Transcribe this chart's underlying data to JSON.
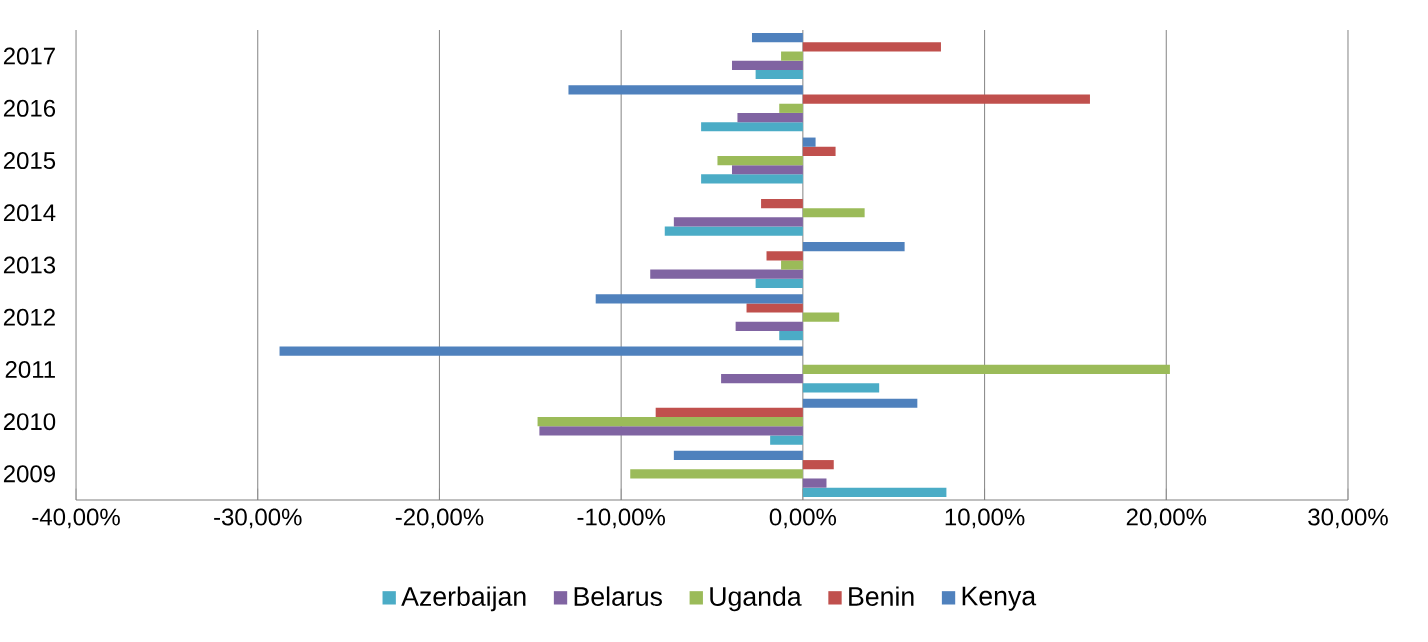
{
  "chart_data": {
    "type": "bar",
    "orientation": "horizontal",
    "categories": [
      "2017",
      "2016",
      "2015",
      "2014",
      "2013",
      "2012",
      "2011",
      "2010",
      "2009"
    ],
    "series": [
      {
        "name": "Azerbaijan",
        "color": "#4bacc6",
        "values": [
          -2.6,
          -5.6,
          -5.6,
          -7.6,
          -2.6,
          -1.3,
          4.2,
          -1.8,
          7.9
        ]
      },
      {
        "name": "Belarus",
        "color": "#8064a2",
        "values": [
          -3.9,
          -3.6,
          -3.9,
          -7.1,
          -8.4,
          -3.7,
          -4.5,
          -14.5,
          1.3
        ]
      },
      {
        "name": "Uganda",
        "color": "#9bbb59",
        "values": [
          -1.2,
          -1.3,
          -4.7,
          3.4,
          -1.2,
          2.0,
          20.2,
          -14.6,
          -9.5
        ]
      },
      {
        "name": "Benin",
        "color": "#c0504d",
        "values": [
          7.6,
          15.8,
          1.8,
          -2.3,
          -2.0,
          -3.1,
          0,
          -8.1,
          1.7
        ]
      },
      {
        "name": "Kenya",
        "color": "#4f81bd",
        "values": [
          -2.8,
          -12.9,
          0.7,
          0,
          5.6,
          -11.4,
          -28.8,
          6.3,
          -7.1
        ]
      }
    ],
    "xlim": [
      -40,
      30
    ],
    "xticks": [
      {
        "value": -40,
        "label": "-40,00%"
      },
      {
        "value": -30,
        "label": "-30,00%"
      },
      {
        "value": -20,
        "label": "-20,00%"
      },
      {
        "value": -10,
        "label": "-10,00%"
      },
      {
        "value": 0,
        "label": "0,00%"
      },
      {
        "value": 10,
        "label": "10,00%"
      },
      {
        "value": 20,
        "label": "20,00%"
      },
      {
        "value": 30,
        "label": "30,00%"
      }
    ],
    "grid": "x",
    "legend": "bottom"
  }
}
